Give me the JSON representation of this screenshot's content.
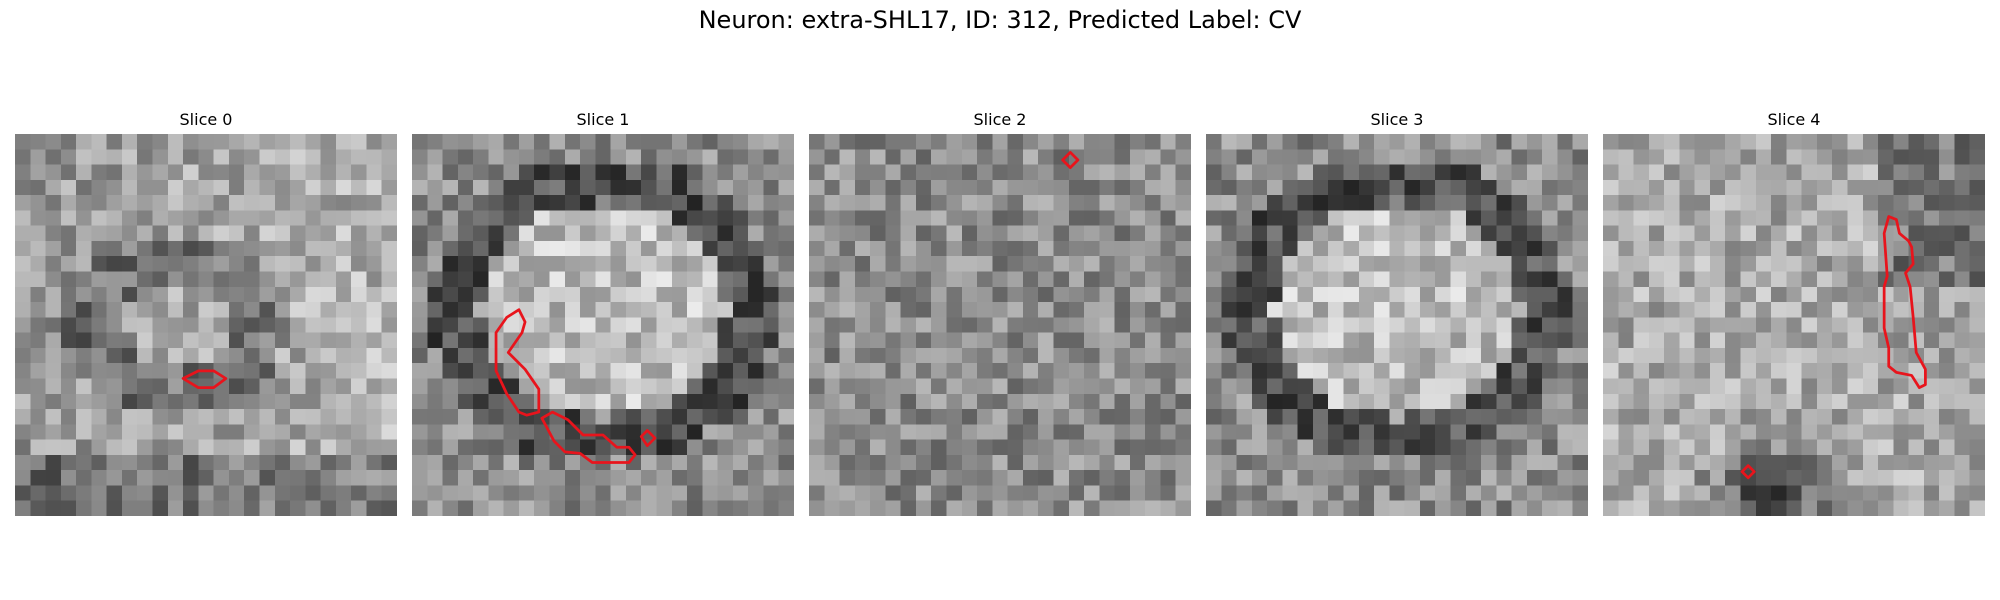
{
  "figure": {
    "title": "Neuron: extra-SHL17, ID: 312, Predicted Label: CV"
  },
  "panels": [
    {
      "title": "Slice 0",
      "seed": 11,
      "pattern": "ring",
      "contours": [
        [
          [
            11,
            16
          ],
          [
            12,
            15.5
          ],
          [
            13,
            15.5
          ],
          [
            13.8,
            16
          ],
          [
            13,
            16.6
          ],
          [
            12,
            16.6
          ]
        ]
      ]
    },
    {
      "title": "Slice 1",
      "seed": 23,
      "pattern": "oval",
      "contours": [
        [
          [
            5.5,
            13
          ],
          [
            6.2,
            12
          ],
          [
            7,
            11.5
          ],
          [
            7.4,
            12.3
          ],
          [
            7.2,
            13
          ],
          [
            6.3,
            14.3
          ],
          [
            7.4,
            15.4
          ],
          [
            8.3,
            16.7
          ],
          [
            8.3,
            18.2
          ],
          [
            7.5,
            18.4
          ],
          [
            7,
            18.2
          ],
          [
            6.2,
            17
          ],
          [
            5.5,
            15.5
          ]
        ],
        [
          [
            8.5,
            18.6
          ],
          [
            9.2,
            18.2
          ],
          [
            10.2,
            18.7
          ],
          [
            11.2,
            19.7
          ],
          [
            12.5,
            19.7
          ],
          [
            13.4,
            20.5
          ],
          [
            14.2,
            20.5
          ],
          [
            14.6,
            21
          ],
          [
            14.2,
            21.5
          ],
          [
            11.8,
            21.5
          ],
          [
            11,
            20.9
          ],
          [
            10,
            20.8
          ],
          [
            9.3,
            20.1
          ]
        ],
        [
          [
            15,
            19.8
          ],
          [
            15.4,
            19.4
          ],
          [
            15.9,
            19.9
          ],
          [
            15.4,
            20.4
          ]
        ]
      ]
    },
    {
      "title": "Slice 2",
      "seed": 37,
      "pattern": "noise",
      "contours": [
        [
          [
            16.6,
            1.7
          ],
          [
            17.1,
            1.2
          ],
          [
            17.6,
            1.7
          ],
          [
            17.1,
            2.2
          ]
        ]
      ]
    },
    {
      "title": "Slice 3",
      "seed": 41,
      "pattern": "oval",
      "contours": []
    },
    {
      "title": "Slice 4",
      "seed": 53,
      "pattern": "dark-bottom",
      "contours": [
        [
          [
            18.4,
            6.5
          ],
          [
            18.7,
            5.4
          ],
          [
            19.2,
            5.6
          ],
          [
            19.4,
            6.5
          ],
          [
            20,
            7
          ],
          [
            20.2,
            7.4
          ],
          [
            20.3,
            8.5
          ],
          [
            19.8,
            9.1
          ],
          [
            20.1,
            10
          ],
          [
            20.3,
            12
          ],
          [
            20.5,
            14.3
          ],
          [
            21.1,
            15.4
          ],
          [
            21.1,
            16.4
          ],
          [
            20.7,
            16.6
          ],
          [
            20.2,
            15.8
          ],
          [
            19.2,
            15.6
          ],
          [
            18.7,
            15.2
          ],
          [
            18.7,
            14
          ],
          [
            18.4,
            12.7
          ],
          [
            18.4,
            10
          ],
          [
            18.6,
            9.3
          ]
        ],
        [
          [
            9.1,
            22.1
          ],
          [
            9.5,
            21.7
          ],
          [
            9.9,
            22.1
          ],
          [
            9.5,
            22.5
          ]
        ]
      ]
    }
  ],
  "colors": {
    "contour": "#e8141c",
    "background": "#ffffff"
  }
}
